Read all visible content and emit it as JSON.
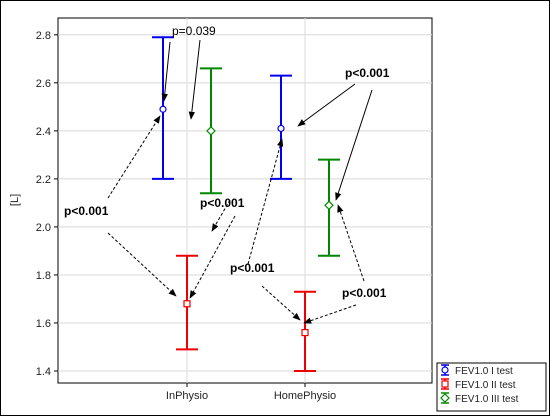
{
  "chart_data": {
    "type": "errorbar",
    "ylabel": "[L]",
    "categories": [
      "InPhysio",
      "HomePhysio"
    ],
    "ylim": [
      1.35,
      2.87
    ],
    "yticks": [
      1.4,
      1.6,
      1.8,
      2.0,
      2.2,
      2.4,
      2.6,
      2.8
    ],
    "grid": true,
    "legend_position": "bottom-right",
    "series": [
      {
        "name": "FEV1.0 I test",
        "color": "#0000ee",
        "marker": "circle",
        "means": [
          2.49,
          2.41
        ],
        "upper": [
          2.79,
          2.63
        ],
        "lower": [
          2.2,
          2.2
        ]
      },
      {
        "name": "FEV1.0 II test",
        "color": "#ee0000",
        "marker": "square",
        "means": [
          1.68,
          1.56
        ],
        "upper": [
          1.88,
          1.73
        ],
        "lower": [
          1.49,
          1.4
        ]
      },
      {
        "name": "FEV1.0 III test",
        "color": "#008800",
        "marker": "diamond",
        "means": [
          2.4,
          2.09
        ],
        "upper": [
          2.66,
          2.28
        ],
        "lower": [
          2.14,
          1.88
        ]
      }
    ],
    "annotations": [
      {
        "text": "p=0.039",
        "bold": false
      },
      {
        "text": "p<0.001",
        "bold": true
      },
      {
        "text": "p<0.001",
        "bold": true
      },
      {
        "text": "p<0.001",
        "bold": true
      },
      {
        "text": "p<0.001",
        "bold": true
      },
      {
        "text": "p<0.001",
        "bold": true
      }
    ]
  }
}
